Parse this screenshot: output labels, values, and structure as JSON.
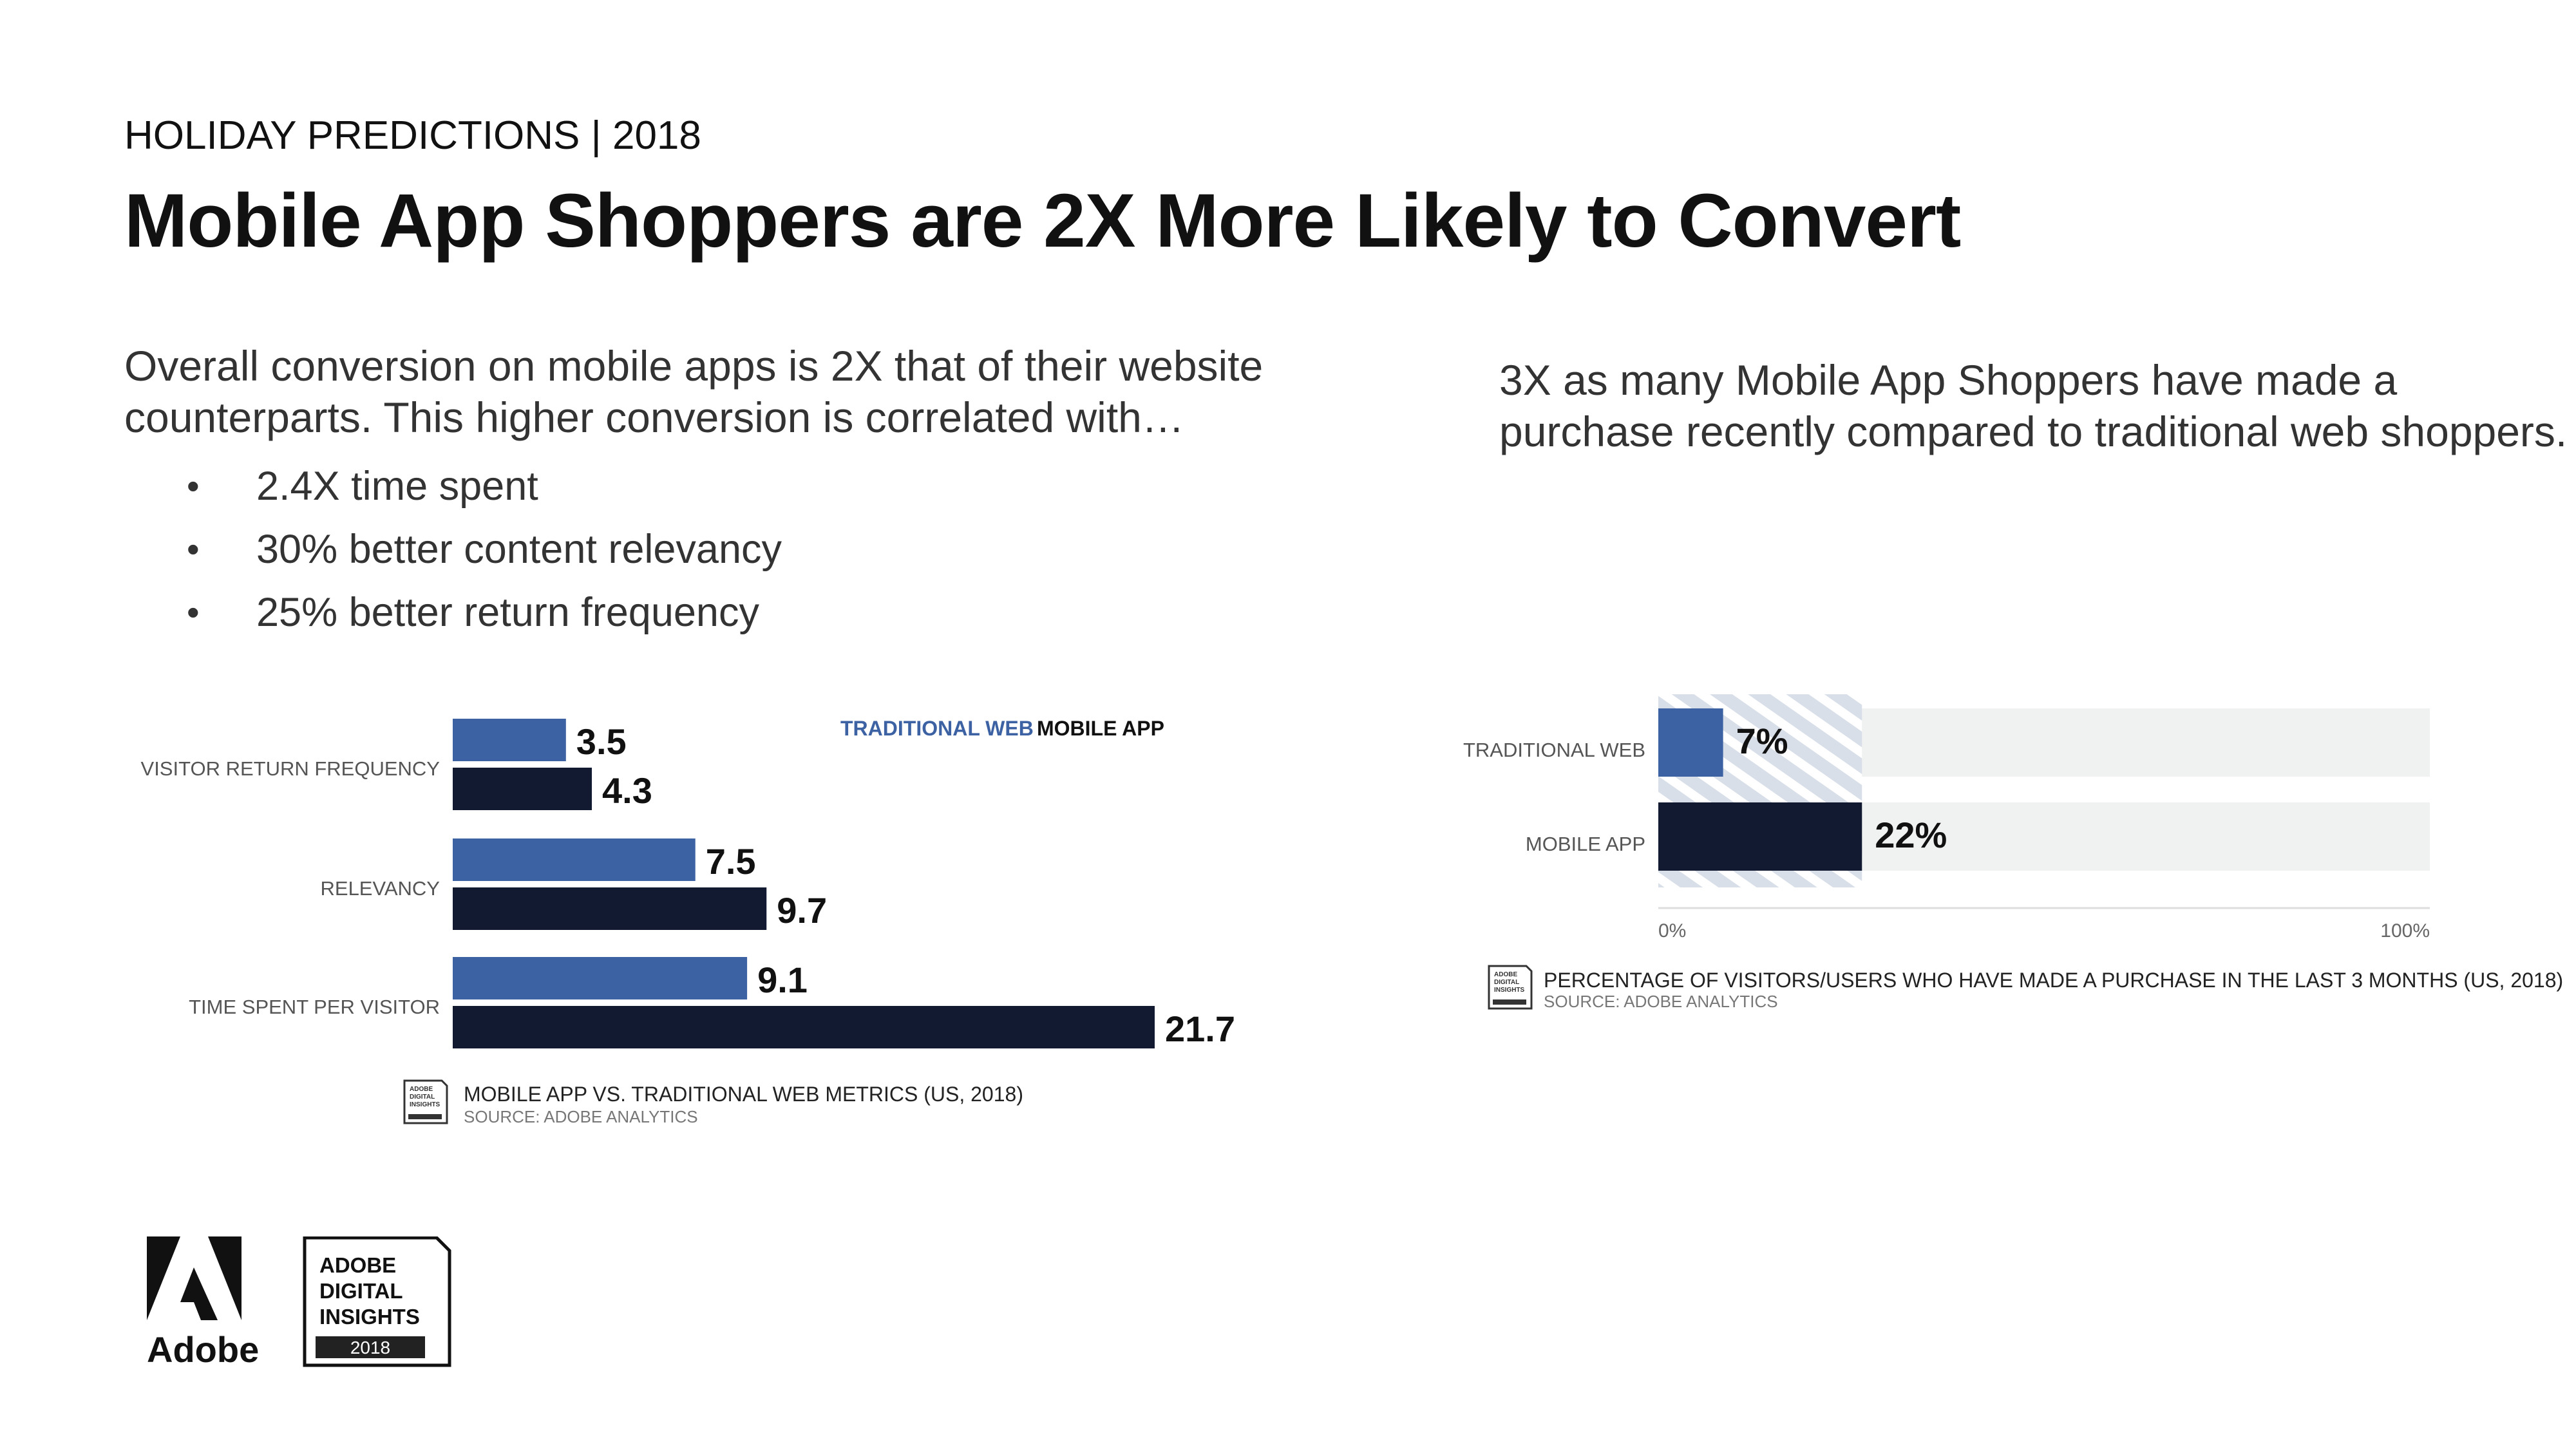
{
  "header": {
    "eyebrow": "HOLIDAY PREDICTIONS | 2018",
    "title": "Mobile App Shoppers are 2X More Likely to Convert"
  },
  "intro": {
    "text": "Overall conversion on mobile apps is 2X that of their website counterparts. This higher conversion is correlated with…",
    "bullets": [
      "2.4X time spent",
      "30% better content relevancy",
      "25% better return frequency"
    ]
  },
  "right_text": "3X as many Mobile App Shoppers have made a purchase recently compared to traditional web shoppers.",
  "colors": {
    "traditional_web": "#3d62a3",
    "mobile_app": "#111a30",
    "track": "#f0f1f1",
    "hatch": "#d8dfe9"
  },
  "chart_data": [
    {
      "type": "bar",
      "orientation": "horizontal",
      "categories": [
        "VISITOR RETURN FREQUENCY",
        "RELEVANCY",
        "TIME SPENT PER VISITOR"
      ],
      "series": [
        {
          "name": "TRADITIONAL WEB",
          "values": [
            3.5,
            7.5,
            9.1
          ],
          "labels": [
            "3.5",
            "7.5",
            "9.1"
          ]
        },
        {
          "name": "MOBILE APP",
          "values": [
            4.3,
            9.7,
            21.7
          ],
          "labels": [
            "4.3",
            "9.7",
            "21.7"
          ]
        }
      ],
      "xlim": [
        0,
        21.7
      ],
      "legend": "top-right",
      "caption": "MOBILE APP VS. TRADITIONAL WEB METRICS (US, 2018)",
      "source": "SOURCE: ADOBE ANALYTICS"
    },
    {
      "type": "bar",
      "orientation": "horizontal",
      "categories": [
        "TRADITIONAL WEB",
        "MOBILE APP"
      ],
      "values": [
        7,
        22
      ],
      "labels": [
        "7%",
        "22%"
      ],
      "xlim": [
        0,
        100
      ],
      "xticks": [
        "0%",
        "100%"
      ],
      "caption": "PERCENTAGE OF VISITORS/USERS WHO HAVE MADE A PURCHASE IN THE LAST 3 MONTHS (US, 2018)",
      "source": "SOURCE: ADOBE ANALYTICS"
    }
  ],
  "logos": {
    "adobe_word": "Adobe",
    "badge_lines": [
      "ADOBE",
      "DIGITAL",
      "INSIGHTS"
    ],
    "badge_year": "2018",
    "mini_badge_lines": [
      "ADOBE",
      "DIGITAL",
      "INSIGHTS"
    ]
  }
}
